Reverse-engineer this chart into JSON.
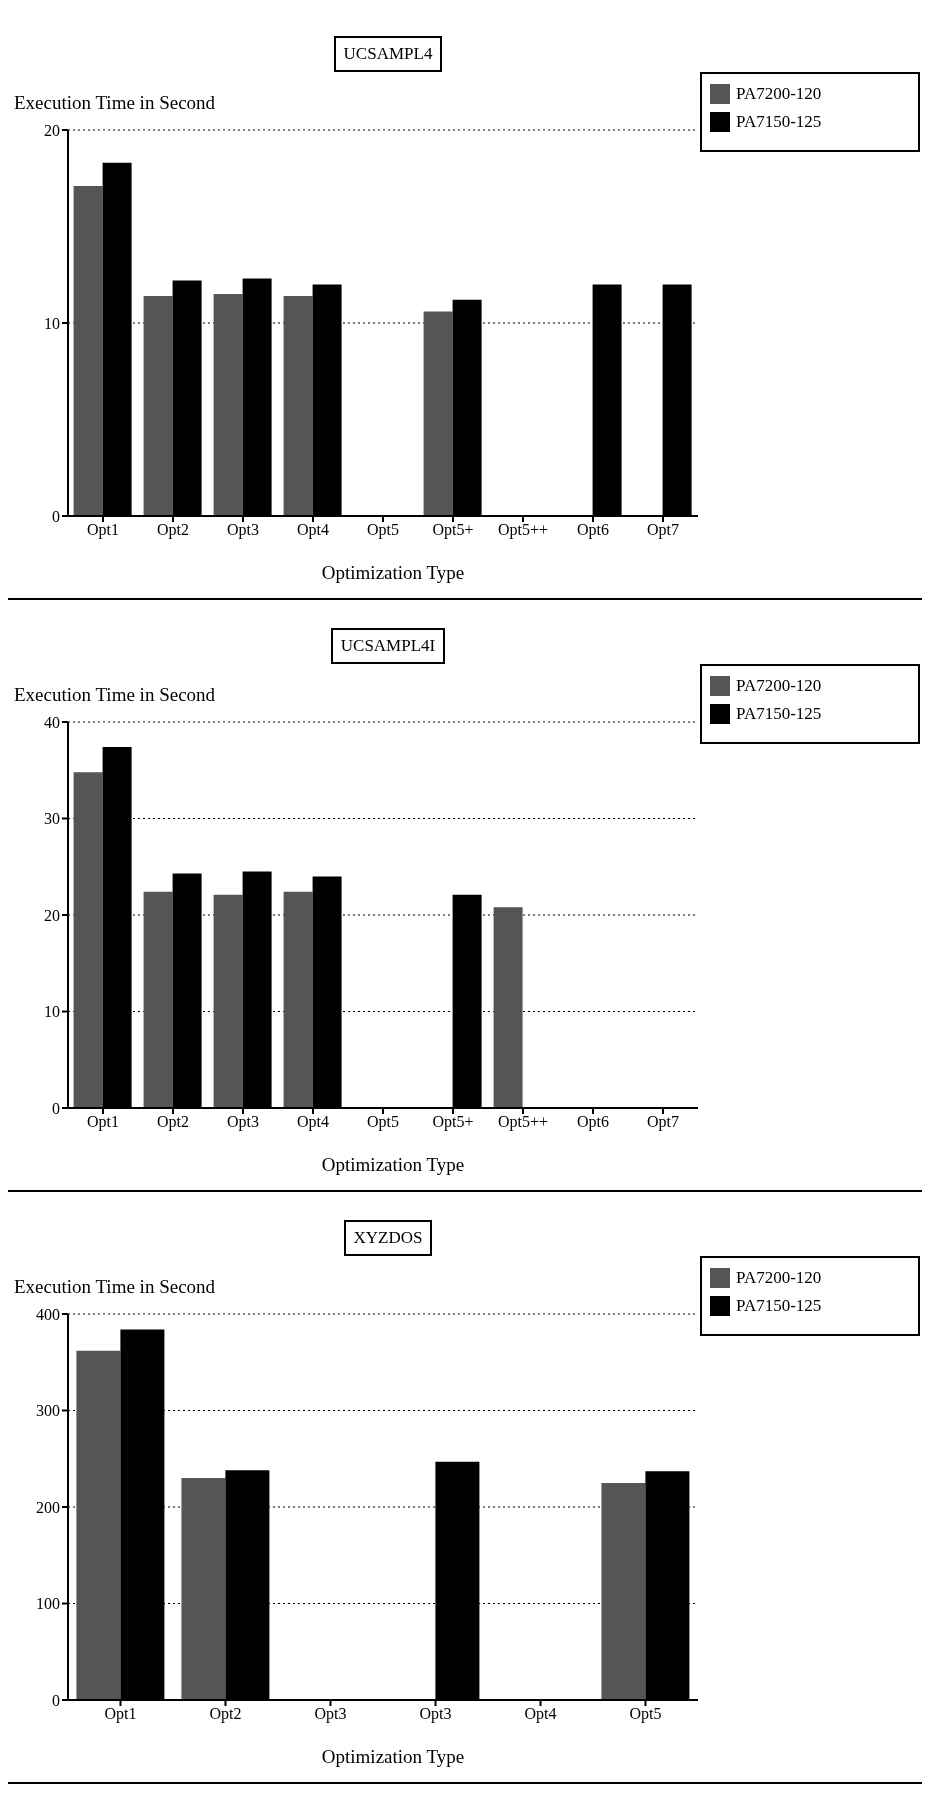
{
  "chart_data": [
    {
      "type": "bar",
      "title": "UCSAMPL4",
      "ylabel": "Execution Time in Second",
      "xlabel": "Optimization Type",
      "categories": [
        "Opt1",
        "Opt2",
        "Opt3",
        "Opt4",
        "Opt5",
        "Opt5+",
        "Opt5++",
        "Opt6",
        "Opt7"
      ],
      "series": [
        {
          "name": "PA7200-120",
          "color": "#555555",
          "values": [
            17.1,
            11.4,
            11.5,
            11.4,
            null,
            10.6,
            null,
            null,
            null
          ]
        },
        {
          "name": "PA7150-125",
          "color": "#000000",
          "values": [
            18.3,
            12.2,
            12.3,
            12.0,
            null,
            11.2,
            null,
            12.0,
            12.0
          ]
        }
      ],
      "ylim": [
        0,
        20
      ],
      "yticks": [
        0,
        10,
        20
      ],
      "grid": "y",
      "legend": "top right"
    },
    {
      "type": "bar",
      "title": "UCSAMPL4I",
      "ylabel": "Execution Time in Second",
      "xlabel": "Optimization Type",
      "categories": [
        "Opt1",
        "Opt2",
        "Opt3",
        "Opt4",
        "Opt5",
        "Opt5+",
        "Opt5++",
        "Opt6",
        "Opt7"
      ],
      "series": [
        {
          "name": "PA7200-120",
          "color": "#555555",
          "values": [
            34.8,
            22.4,
            22.1,
            22.4,
            null,
            null,
            20.8,
            null,
            null
          ]
        },
        {
          "name": "PA7150-125",
          "color": "#000000",
          "values": [
            37.4,
            24.3,
            24.5,
            24.0,
            null,
            22.1,
            null,
            null,
            null
          ]
        }
      ],
      "ylim": [
        0,
        40
      ],
      "yticks": [
        0,
        10,
        20,
        30,
        40
      ],
      "grid": "y",
      "legend": "top right"
    },
    {
      "type": "bar",
      "title": "XYZDOS",
      "ylabel": "Execution Time in Second",
      "xlabel": "Optimization Type",
      "categories": [
        "Opt1",
        "Opt2",
        "Opt3",
        "Opt3",
        "Opt4",
        "Opt5"
      ],
      "series": [
        {
          "name": "PA7200-120",
          "color": "#555555",
          "values": [
            362,
            230,
            null,
            null,
            null,
            225
          ]
        },
        {
          "name": "PA7150-125",
          "color": "#000000",
          "values": [
            384,
            238,
            null,
            247,
            null,
            237
          ]
        }
      ],
      "ylim": [
        0,
        400
      ],
      "yticks": [
        0,
        100,
        200,
        300,
        400
      ],
      "grid": "y",
      "legend": "top right"
    }
  ]
}
